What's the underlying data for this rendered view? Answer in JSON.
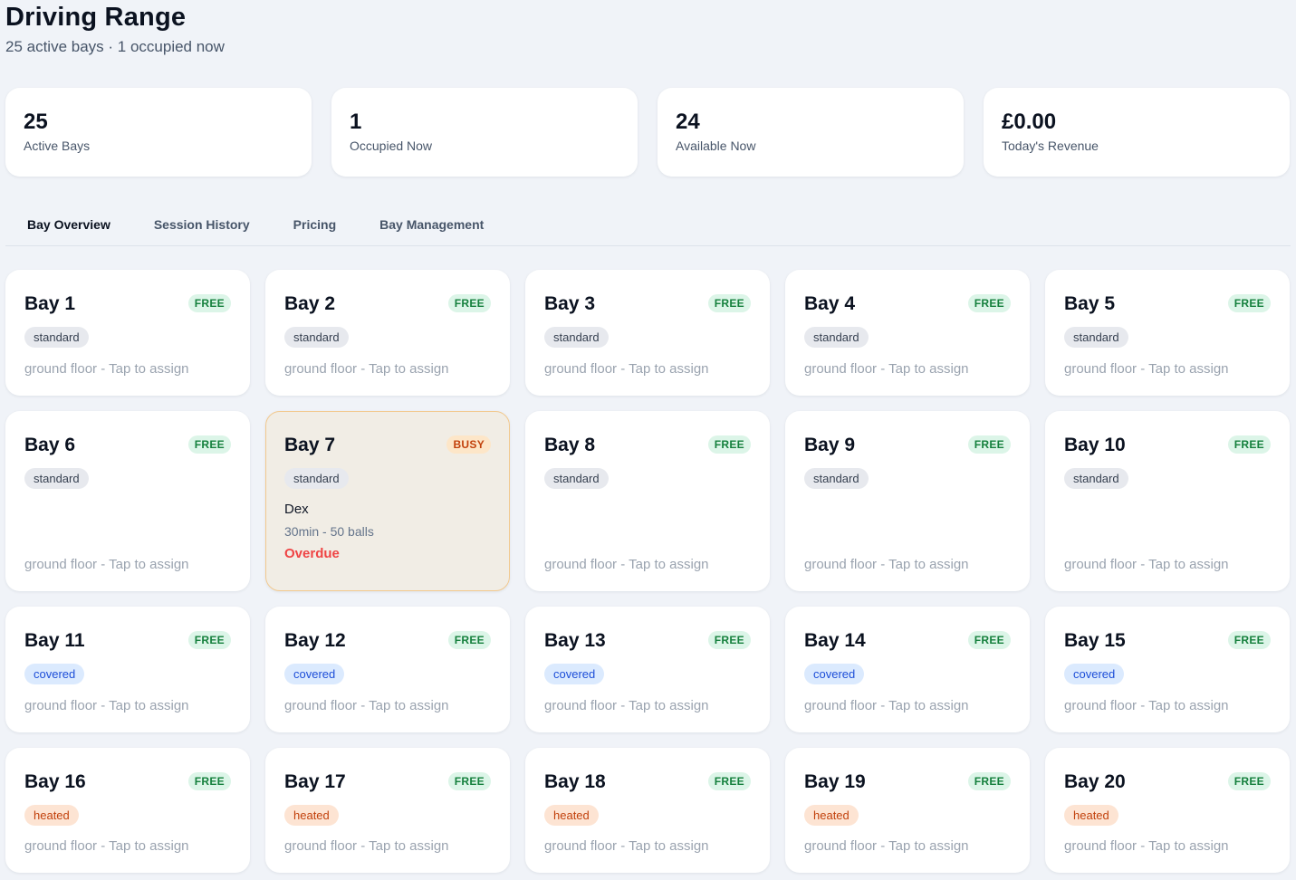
{
  "header": {
    "title": "Driving Range",
    "subtitle": "25 active bays · 1 occupied now"
  },
  "stats": [
    {
      "value": "25",
      "label": "Active Bays"
    },
    {
      "value": "1",
      "label": "Occupied Now"
    },
    {
      "value": "24",
      "label": "Available Now"
    },
    {
      "value": "£0.00",
      "label": "Today's Revenue"
    }
  ],
  "tabs": [
    {
      "label": "Bay Overview",
      "active": true
    },
    {
      "label": "Session History",
      "active": false
    },
    {
      "label": "Pricing",
      "active": false
    },
    {
      "label": "Bay Management",
      "active": false
    }
  ],
  "bay_footer": "ground floor - Tap to assign",
  "bays": [
    {
      "name": "Bay 1",
      "status": "FREE",
      "type": "standard"
    },
    {
      "name": "Bay 2",
      "status": "FREE",
      "type": "standard"
    },
    {
      "name": "Bay 3",
      "status": "FREE",
      "type": "standard"
    },
    {
      "name": "Bay 4",
      "status": "FREE",
      "type": "standard"
    },
    {
      "name": "Bay 5",
      "status": "FREE",
      "type": "standard"
    },
    {
      "name": "Bay 6",
      "status": "FREE",
      "type": "standard"
    },
    {
      "name": "Bay 7",
      "status": "BUSY",
      "type": "standard",
      "session": {
        "customer": "Dex",
        "detail": "30min - 50 balls",
        "alert": "Overdue"
      }
    },
    {
      "name": "Bay 8",
      "status": "FREE",
      "type": "standard"
    },
    {
      "name": "Bay 9",
      "status": "FREE",
      "type": "standard"
    },
    {
      "name": "Bay 10",
      "status": "FREE",
      "type": "standard"
    },
    {
      "name": "Bay 11",
      "status": "FREE",
      "type": "covered"
    },
    {
      "name": "Bay 12",
      "status": "FREE",
      "type": "covered"
    },
    {
      "name": "Bay 13",
      "status": "FREE",
      "type": "covered"
    },
    {
      "name": "Bay 14",
      "status": "FREE",
      "type": "covered"
    },
    {
      "name": "Bay 15",
      "status": "FREE",
      "type": "covered"
    },
    {
      "name": "Bay 16",
      "status": "FREE",
      "type": "heated"
    },
    {
      "name": "Bay 17",
      "status": "FREE",
      "type": "heated"
    },
    {
      "name": "Bay 18",
      "status": "FREE",
      "type": "heated"
    },
    {
      "name": "Bay 19",
      "status": "FREE",
      "type": "heated"
    },
    {
      "name": "Bay 20",
      "status": "FREE",
      "type": "heated"
    }
  ]
}
